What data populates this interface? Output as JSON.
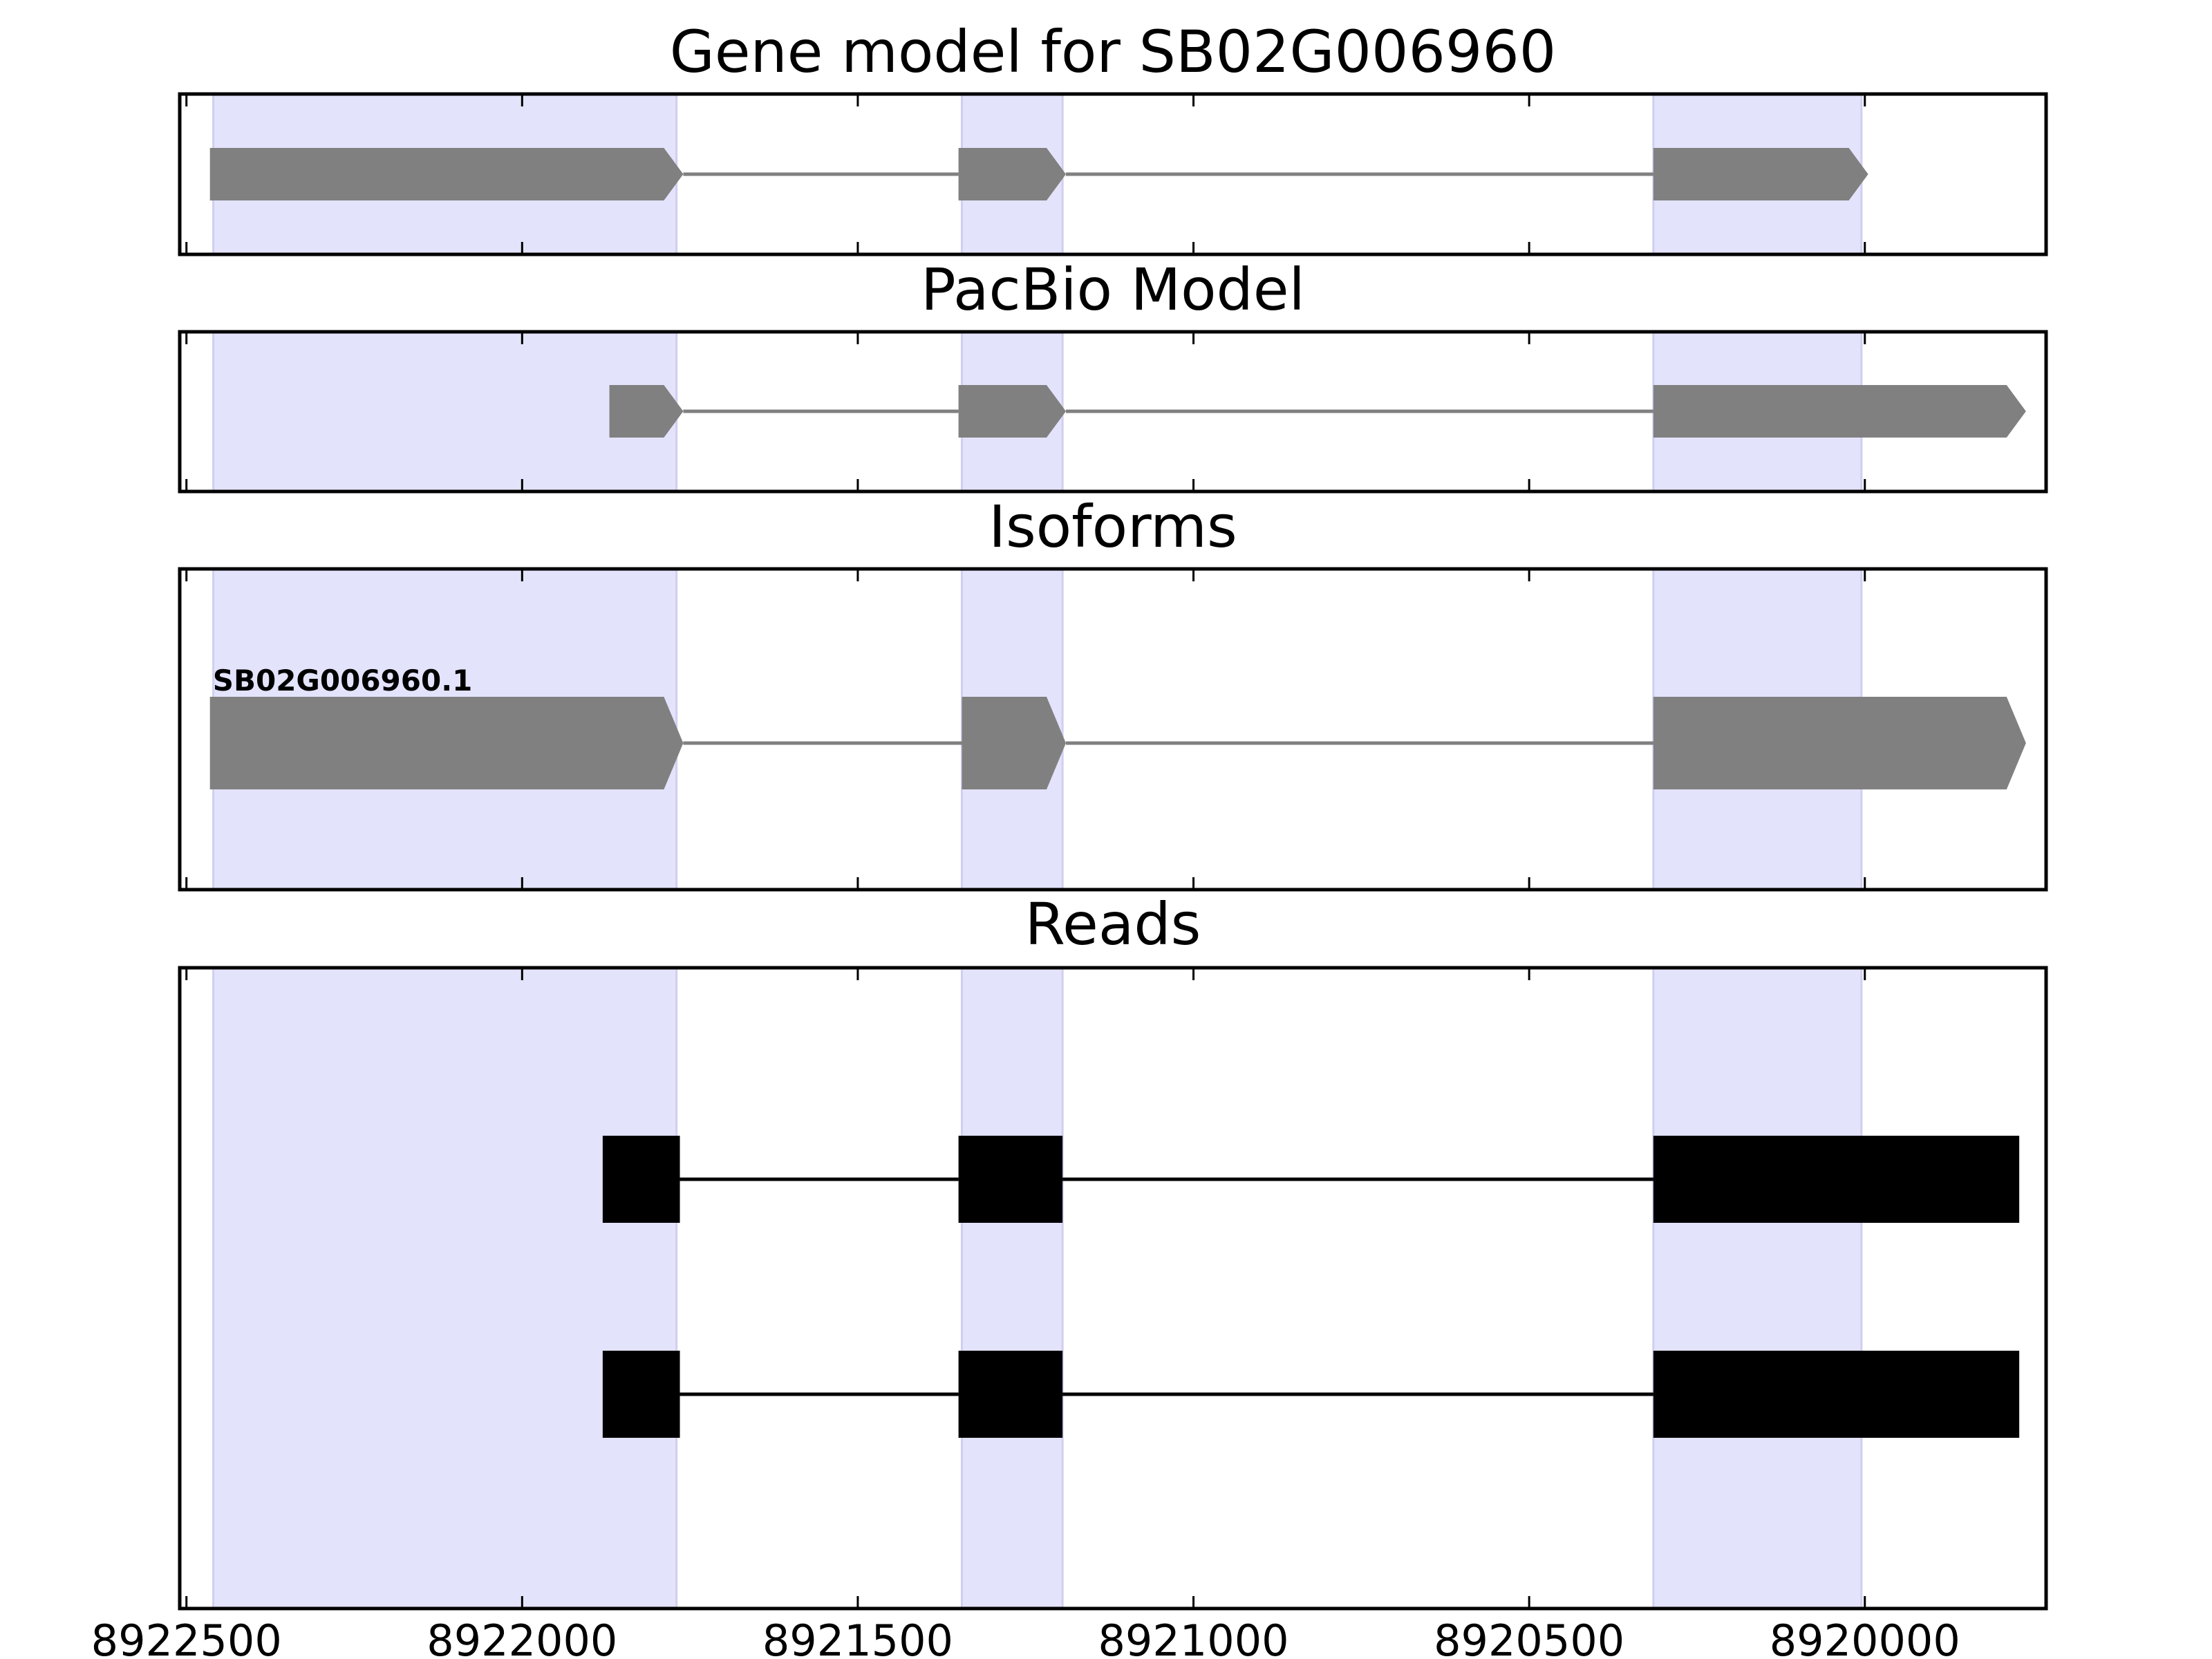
{
  "chart_data": {
    "type": "gene-structure",
    "x_axis": {
      "range": [
        8922510,
        8919730
      ],
      "inverted": true,
      "ticks": [
        8922500,
        8922000,
        8921500,
        8921000,
        8920500,
        8920000
      ],
      "tick_labels": [
        "8922500",
        "8922000",
        "8921500",
        "8921000",
        "8920500",
        "8920000"
      ]
    },
    "highlight_regions": [
      [
        8922460,
        8921770
      ],
      [
        8921345,
        8921195
      ],
      [
        8920315,
        8920005
      ]
    ],
    "colors": {
      "shading": "#e3e3fc",
      "model": "#808080",
      "reads": "#000000",
      "frame": "#000000"
    },
    "panels": [
      {
        "title": "Gene model for SB02G006960",
        "kind": "model",
        "tracks": [
          {
            "label": "",
            "exons": [
              [
                8922465,
                8921760
              ],
              [
                8921350,
                8921190
              ],
              [
                8920315,
                8919995
              ]
            ]
          }
        ]
      },
      {
        "title": "PacBio Model",
        "kind": "model",
        "tracks": [
          {
            "label": "",
            "exons": [
              [
                8921870,
                8921760
              ],
              [
                8921350,
                8921190
              ],
              [
                8920315,
                8919760
              ]
            ]
          }
        ]
      },
      {
        "title": "Isoforms",
        "kind": "model",
        "tracks": [
          {
            "label": "SB02G006960.1",
            "exons": [
              [
                8922465,
                8921760
              ],
              [
                8921345,
                8921190
              ],
              [
                8920315,
                8919760
              ]
            ]
          }
        ]
      },
      {
        "title": "Reads",
        "kind": "reads",
        "tracks": [
          {
            "label": "",
            "exons": [
              [
                8921880,
                8921765
              ],
              [
                8921350,
                8921195
              ],
              [
                8920315,
                8919770
              ]
            ]
          },
          {
            "label": "",
            "exons": [
              [
                8921880,
                8921765
              ],
              [
                8921350,
                8921195
              ],
              [
                8920315,
                8919770
              ]
            ]
          }
        ]
      }
    ]
  }
}
